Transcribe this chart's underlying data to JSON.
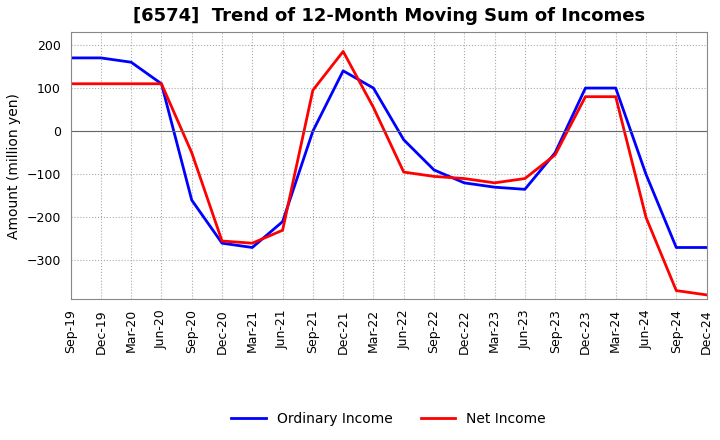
{
  "title": "[6574]  Trend of 12-Month Moving Sum of Incomes",
  "ylabel": "Amount (million yen)",
  "ylim": [
    -390,
    230
  ],
  "yticks": [
    200,
    100,
    0,
    -100,
    -200,
    -300
  ],
  "x_labels": [
    "Sep-19",
    "Dec-19",
    "Mar-20",
    "Jun-20",
    "Sep-20",
    "Dec-20",
    "Mar-21",
    "Jun-21",
    "Sep-21",
    "Dec-21",
    "Mar-22",
    "Jun-22",
    "Sep-22",
    "Dec-22",
    "Mar-23",
    "Jun-23",
    "Sep-23",
    "Dec-23",
    "Mar-24",
    "Jun-24",
    "Sep-24",
    "Dec-24"
  ],
  "ordinary_income": [
    170,
    170,
    160,
    110,
    -160,
    -260,
    -270,
    -210,
    0,
    140,
    100,
    -20,
    -90,
    -120,
    -130,
    -135,
    -50,
    100,
    100,
    -100,
    -270,
    -270
  ],
  "net_income": [
    110,
    110,
    110,
    110,
    -50,
    -255,
    -260,
    -230,
    95,
    185,
    55,
    -95,
    -105,
    -110,
    -120,
    -110,
    -55,
    80,
    80,
    -200,
    -370,
    -380
  ],
  "ordinary_color": "#0000ff",
  "net_color": "#ff0000",
  "line_width": 2.0,
  "grid_color": "#aaaaaa",
  "background_color": "#ffffff",
  "title_fontsize": 13,
  "label_fontsize": 10,
  "tick_fontsize": 9
}
